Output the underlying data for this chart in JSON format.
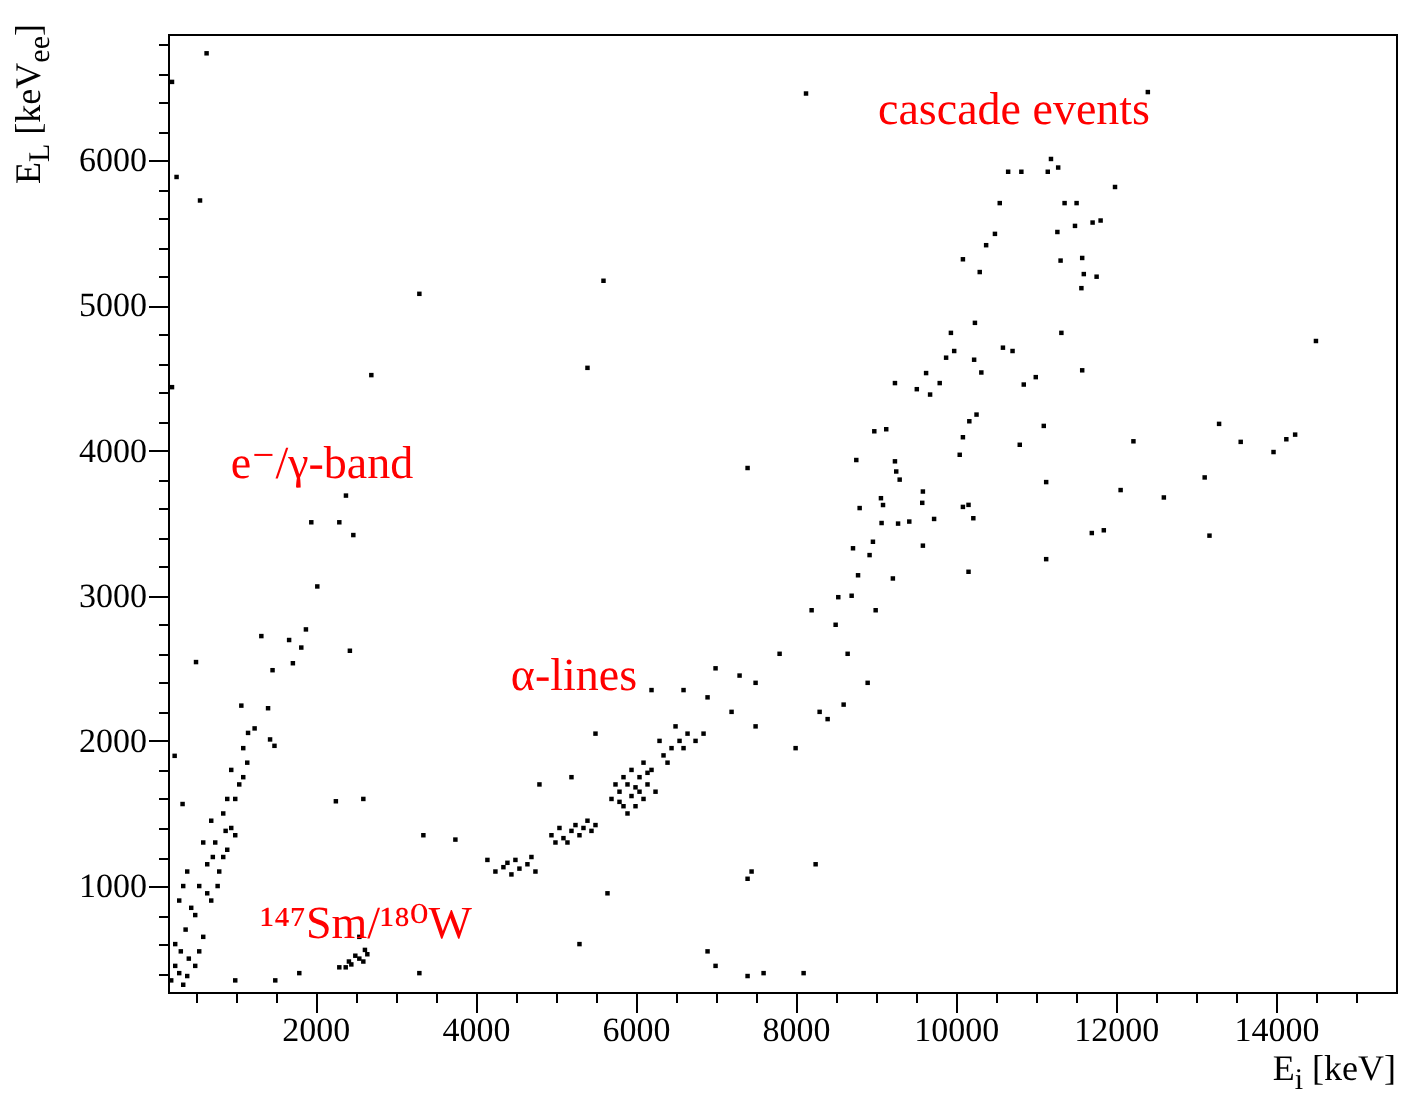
{
  "chart_data": {
    "type": "scatter",
    "xlabel": "E$_{i}$ [keV]",
    "ylabel": "E$_{L}$ [keV$_{ee}$]",
    "marker": "square",
    "xlim": [
      160,
      15500
    ],
    "ylim": [
      270,
      6870
    ],
    "xticks": [
      {
        "value": 500,
        "label": null
      },
      {
        "value": 1000,
        "label": null
      },
      {
        "value": 1500,
        "label": null
      },
      2000,
      {
        "value": 2500,
        "label": null
      },
      {
        "value": 3000,
        "label": null
      },
      {
        "value": 3500,
        "label": null
      },
      4000,
      {
        "value": 4500,
        "label": null
      },
      {
        "value": 5000,
        "label": null
      },
      {
        "value": 5500,
        "label": null
      },
      6000,
      {
        "value": 6500,
        "label": null
      },
      {
        "value": 7000,
        "label": null
      },
      {
        "value": 7500,
        "label": null
      },
      8000,
      {
        "value": 8500,
        "label": null
      },
      {
        "value": 9000,
        "label": null
      },
      {
        "value": 9500,
        "label": null
      },
      10000,
      {
        "value": 10500,
        "label": null
      },
      {
        "value": 11000,
        "label": null
      },
      {
        "value": 11500,
        "label": null
      },
      12000,
      {
        "value": 12500,
        "label": null
      },
      {
        "value": 13000,
        "label": null
      },
      {
        "value": 13500,
        "label": null
      },
      14000,
      {
        "value": 14500,
        "label": null
      },
      {
        "value": 15000,
        "label": null
      }
    ],
    "yticks": [
      {
        "value": 400,
        "label": null
      },
      {
        "value": 600,
        "label": null
      },
      {
        "value": 800,
        "label": null
      },
      1000,
      {
        "value": 1200,
        "label": null
      },
      {
        "value": 1400,
        "label": null
      },
      {
        "value": 1600,
        "label": null
      },
      {
        "value": 1800,
        "label": null
      },
      2000,
      {
        "value": 2200,
        "label": null
      },
      {
        "value": 2400,
        "label": null
      },
      {
        "value": 2600,
        "label": null
      },
      {
        "value": 2800,
        "label": null
      },
      3000,
      {
        "value": 3200,
        "label": null
      },
      {
        "value": 3400,
        "label": null
      },
      {
        "value": 3600,
        "label": null
      },
      {
        "value": 3800,
        "label": null
      },
      4000,
      {
        "value": 4200,
        "label": null
      },
      {
        "value": 4400,
        "label": null
      },
      {
        "value": 4600,
        "label": null
      },
      {
        "value": 4800,
        "label": null
      },
      5000,
      {
        "value": 5200,
        "label": null
      },
      {
        "value": 5400,
        "label": null
      },
      {
        "value": 5600,
        "label": null
      },
      {
        "value": 5800,
        "label": null
      },
      6000,
      {
        "value": 6200,
        "label": null
      },
      {
        "value": 6400,
        "label": null
      },
      {
        "value": 6600,
        "label": null
      },
      {
        "value": 6800,
        "label": null
      }
    ],
    "annotations": [
      "cascade events",
      "e⁻/γ-band",
      "α-lines",
      "¹⁴⁷Sm/¹⁸⁰W"
    ],
    "series": [
      {
        "color": "#000000",
        "x": [
          300,
          350,
          420,
          250,
          500,
          380,
          600,
          450,
          700,
          550,
          800,
          650,
          900,
          750,
          950,
          850,
          1000,
          1050,
          950,
          1150,
          1100,
          300,
          400,
          600,
          700,
          200,
          250,
          320,
          500,
          650,
          850,
          1000,
          780,
          900,
          1100,
          400,
          550,
          350,
          720,
          880,
          1076,
          1410,
          1242,
          1435,
          1490,
          1160,
          1326,
          1466,
          1673,
          1825,
          1883,
          1720,
          1950,
          2300,
          2475,
          2383,
          2025,
          2432,
          2257,
          510,
          243,
          342,
          210,
          267,
          560,
          642,
          210,
          2300,
          2380,
          2450,
          2500,
          2550,
          2600,
          2620,
          2650,
          2420,
          1500,
          1800,
          1000,
          2550,
          3300,
          4150,
          4250,
          4350,
          4450,
          4550,
          4650,
          4750,
          4500,
          4700,
          4400,
          4950,
          5050,
          5100,
          5200,
          5250,
          5300,
          5350,
          5450,
          5150,
          5400,
          5000,
          5500,
          5700,
          5800,
          5850,
          5900,
          5950,
          6000,
          6050,
          6100,
          6150,
          6200,
          5750,
          5950,
          6000,
          6100,
          5850,
          6250,
          5900,
          6050,
          5800,
          6150,
          6350,
          6450,
          6550,
          6650,
          6750,
          6500,
          6400,
          6600,
          6850,
          6300,
          3350,
          3750,
          4800,
          5200,
          5500,
          6200,
          6600,
          7000,
          7500,
          7800,
          7200,
          7500,
          6900,
          7300,
          8000,
          8300,
          8400,
          7400,
          7450,
          8250,
          5650,
          5300,
          2600,
          6900,
          7000,
          7400,
          8100,
          7600,
          8900,
          8600,
          8533,
          8717,
          8800,
          8758,
          8983,
          9132,
          9257,
          9092,
          9300,
          9630,
          9514,
          9241,
          9940,
          9981,
          10240,
          10090,
          10300,
          10380,
          10490,
          10550,
          10655,
          10820,
          11150,
          11190,
          11280,
          11360,
          11510,
          11490,
          11710,
          11810,
          11990,
          11270,
          11310,
          11580,
          11600,
          11760,
          11570,
          11320,
          11580,
          10590,
          10710,
          11000,
          10850,
          11100,
          10800,
          11130,
          10260,
          10170,
          10090,
          10050,
          10090,
          10160,
          10220,
          9730,
          9590,
          9420,
          9280,
          9215,
          9590,
          10160,
          11700,
          11850,
          11130,
          12060,
          12220,
          12600,
          13110,
          13170,
          13290,
          13560,
          13970,
          14130,
          14240,
          14500,
          8130,
          12400,
          8780,
          8924,
          8966,
          9074,
          9066,
          9241,
          9582,
          9680,
          9800,
          9880,
          10230,
          10320,
          8500,
          8700,
          8650,
          9000,
          8200,
          3300,
          5600,
          5400,
          7400,
          2700
        ],
        "values": [
          400,
          320,
          500,
          600,
          450,
          700,
          650,
          850,
          900,
          1000,
          1100,
          1150,
          1250,
          1300,
          1400,
          1500,
          1600,
          1700,
          1800,
          1850,
          1950,
          900,
          1100,
          1300,
          1450,
          350,
          450,
          550,
          800,
          950,
          1200,
          1350,
          1000,
          1600,
          1750,
          380,
          550,
          1000,
          1200,
          1380,
          2243,
          2225,
          2086,
          2010,
          1966,
          2055,
          2722,
          2487,
          2695,
          2643,
          2768,
          2535,
          3506,
          3506,
          3418,
          3690,
          3064,
          2621,
          1584,
          2543,
          1897,
          1565,
          6540,
          5885,
          5723,
          6737,
          4437,
          440,
          440,
          460,
          520,
          500,
          480,
          560,
          530,
          480,
          350,
          400,
          350,
          650,
          400,
          1180,
          1100,
          1130,
          1080,
          1120,
          1150,
          1100,
          1180,
          1200,
          1160,
          1350,
          1400,
          1330,
          1380,
          1420,
          1350,
          1400,
          1380,
          1300,
          1450,
          1300,
          1420,
          1600,
          1650,
          1550,
          1700,
          1620,
          1680,
          1750,
          1600,
          1700,
          1800,
          1700,
          1800,
          1550,
          1850,
          1750,
          1650,
          1500,
          1650,
          1580,
          1780,
          1900,
          1950,
          2000,
          2050,
          2000,
          2100,
          1850,
          1950,
          2050,
          2000,
          1350,
          1320,
          1700,
          1750,
          2050,
          2350,
          2350,
          2500,
          2400,
          2600,
          2200,
          2100,
          2300,
          2450,
          1950,
          2200,
          2150,
          1050,
          1100,
          1150,
          950,
          600,
          1600,
          550,
          450,
          380,
          400,
          400,
          2400,
          2250,
          2990,
          3327,
          3604,
          3935,
          4133,
          4147,
          3856,
          3625,
          3800,
          4534,
          4423,
          4465,
          4811,
          4686,
          4880,
          5318,
          5230,
          5415,
          5493,
          5705,
          5921,
          5921,
          5921,
          6009,
          5950,
          5705,
          5705,
          5548,
          5571,
          5585,
          5816,
          5506,
          5309,
          5327,
          5216,
          5198,
          5119,
          4811,
          4553,
          4709,
          4686,
          4506,
          4455,
          4170,
          4040,
          3783,
          4248,
          4202,
          4092,
          3971,
          3612,
          3626,
          3534,
          3529,
          3718,
          3511,
          3497,
          3119,
          3345,
          3165,
          3432,
          3451,
          3252,
          3728,
          4064,
          3677,
          3815,
          3414,
          4184,
          4060,
          3990,
          4078,
          4110,
          4755,
          6460,
          6470,
          3141,
          3280,
          3372,
          3501,
          3672,
          3926,
          3640,
          4386,
          4465,
          4640,
          4626,
          4538,
          2800,
          3000,
          2600,
          2900,
          2900,
          5080,
          5170,
          4570,
          3880,
          4520
        ]
      }
    ]
  }
}
